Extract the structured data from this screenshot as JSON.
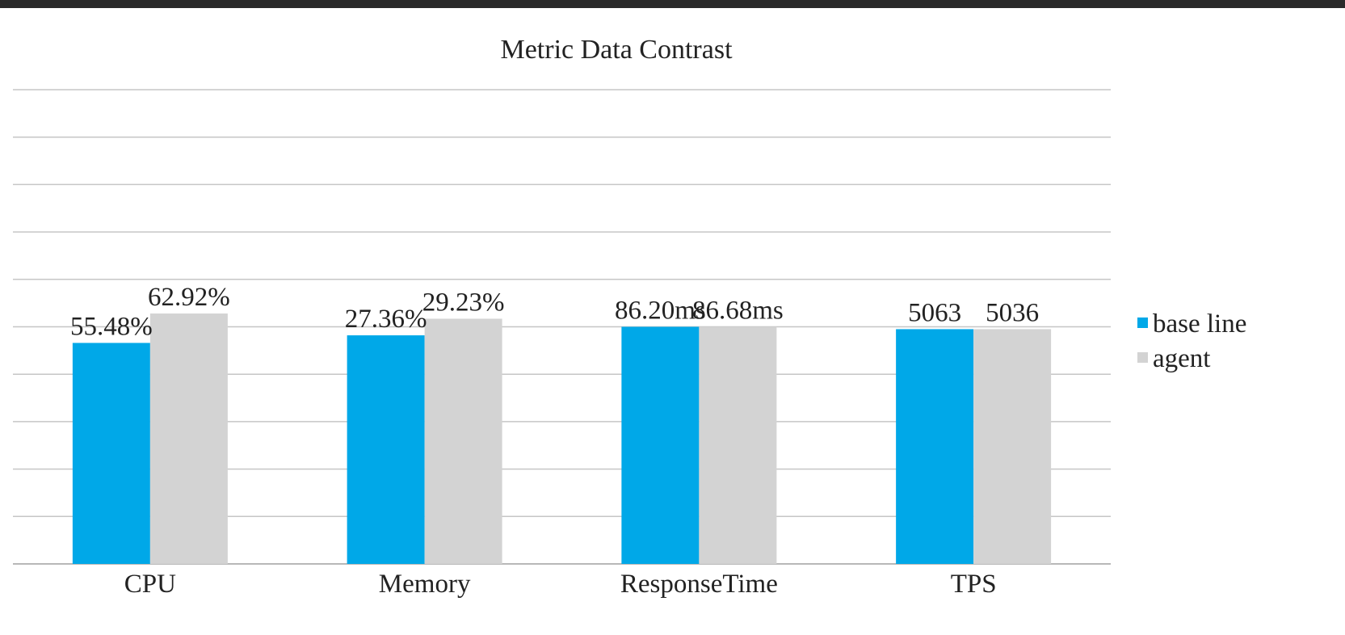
{
  "colors": {
    "base_line": "#00a8e8",
    "agent": "#d3d3d3",
    "grid": "#c6c6c6",
    "topbar": "#2a2a2a"
  },
  "chart_data": {
    "type": "bar",
    "title": "Metric Data Contrast",
    "categories": [
      "CPU",
      "Memory",
      "ResponseTime",
      "TPS"
    ],
    "series": [
      {
        "name": "base line",
        "color": "#00a8e8",
        "labels": [
          "55.48%",
          "27.36%",
          "86.20ms",
          "5063"
        ],
        "relative_heights": [
          0.466,
          0.482,
          0.5,
          0.495
        ]
      },
      {
        "name": "agent",
        "color": "#d3d3d3",
        "labels": [
          "62.92%",
          "29.23%",
          "86.68ms",
          "5036"
        ],
        "relative_heights": [
          0.528,
          0.517,
          0.5,
          0.495
        ]
      }
    ],
    "ylim": [
      0,
      1
    ],
    "grid": true,
    "gridlines": 10,
    "legend_position": "right"
  }
}
